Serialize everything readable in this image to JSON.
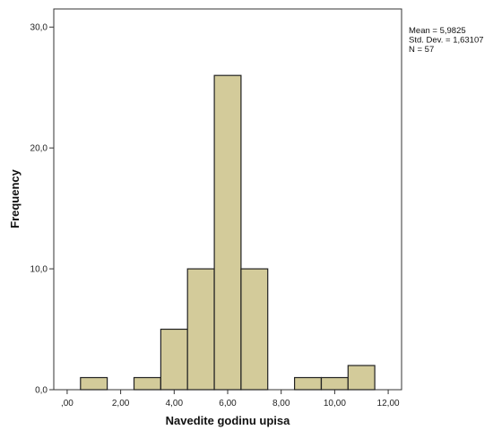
{
  "chart_data": {
    "type": "bar",
    "subtype": "histogram",
    "xlabel": "Navedite godinu upisa",
    "ylabel": "Frequency",
    "xlim": [
      -0.5,
      12.5
    ],
    "ylim": [
      0,
      31.5
    ],
    "x_ticks": [
      0,
      2,
      4,
      6,
      8,
      10,
      12
    ],
    "x_tick_labels": [
      ",00",
      "2,00",
      "4,00",
      "6,00",
      "8,00",
      "10,00",
      "12,00"
    ],
    "y_ticks": [
      0,
      10,
      20,
      30
    ],
    "y_tick_labels": [
      "0,0",
      "10,0",
      "20,0",
      "30,0"
    ],
    "bins": [
      {
        "start": 0.5,
        "end": 1.5,
        "value": 1
      },
      {
        "start": 2.5,
        "end": 3.5,
        "value": 1
      },
      {
        "start": 3.5,
        "end": 4.5,
        "value": 5
      },
      {
        "start": 4.5,
        "end": 5.5,
        "value": 10
      },
      {
        "start": 5.5,
        "end": 6.5,
        "value": 26
      },
      {
        "start": 6.5,
        "end": 7.5,
        "value": 10
      },
      {
        "start": 8.5,
        "end": 9.5,
        "value": 1
      },
      {
        "start": 9.5,
        "end": 10.5,
        "value": 1
      },
      {
        "start": 10.5,
        "end": 11.5,
        "value": 2
      }
    ],
    "stats": [
      "Mean = 5,9825",
      "Std. Dev. = 1,63107",
      "N = 57"
    ],
    "bar_color": "#d3cb9a",
    "bar_stroke": "#222222",
    "grid": false
  }
}
